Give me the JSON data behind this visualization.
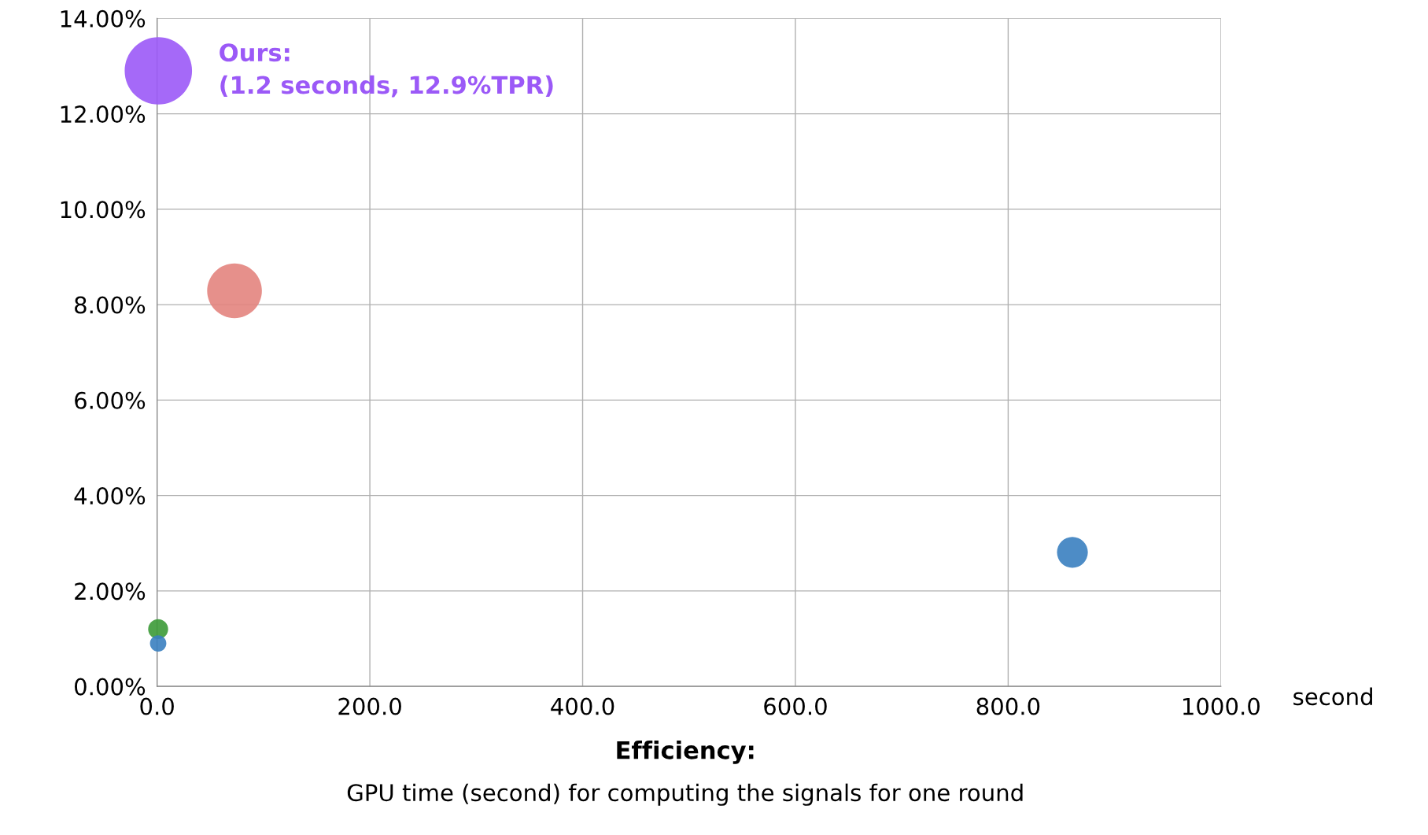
{
  "chart_data": {
    "type": "bubble",
    "xlabel": "Efficiency:\nGPU time (second) for computing the signals for one round",
    "x": [
      1.2,
      72.8,
      860.4,
      1.0,
      1.0
    ],
    "values": [
      12.9,
      8.29,
      2.81,
      1.2,
      0.9
    ],
    "sizes": [
      1,
      0.66,
      0.21,
      0.088,
      0.059
    ],
    "colors": [
      "#9b59f7",
      "#e3847e",
      "#3a7fc0",
      "#3c9a37",
      "#3a7fc0"
    ],
    "xlim": [
      0,
      1000
    ],
    "xticks": [
      {
        "value": 0,
        "label": "0.0"
      },
      {
        "value": 200,
        "label": "200.0"
      },
      {
        "value": 400,
        "label": "400.0"
      },
      {
        "value": 600,
        "label": "600.0"
      },
      {
        "value": 800,
        "label": "800.0"
      },
      {
        "value": 1000,
        "label": "1000.0"
      }
    ],
    "ylim": [
      0,
      14
    ],
    "yticks": [
      {
        "value": 0,
        "label": "0.00%"
      },
      {
        "value": 2,
        "label": "2.00%"
      },
      {
        "value": 4,
        "label": "4.00%"
      },
      {
        "value": 6,
        "label": "6.00%"
      },
      {
        "value": 8,
        "label": "8.00%"
      },
      {
        "value": 10,
        "label": "10.00%"
      },
      {
        "value": 12,
        "label": "12.00%"
      },
      {
        "value": 14,
        "label": "14.00%"
      }
    ],
    "grid": true,
    "annotations": [
      {
        "text": "Ours:\n(1.2 seconds, 12.9%TPR)",
        "x": 1.2,
        "y": 12.9
      },
      "second"
    ]
  }
}
